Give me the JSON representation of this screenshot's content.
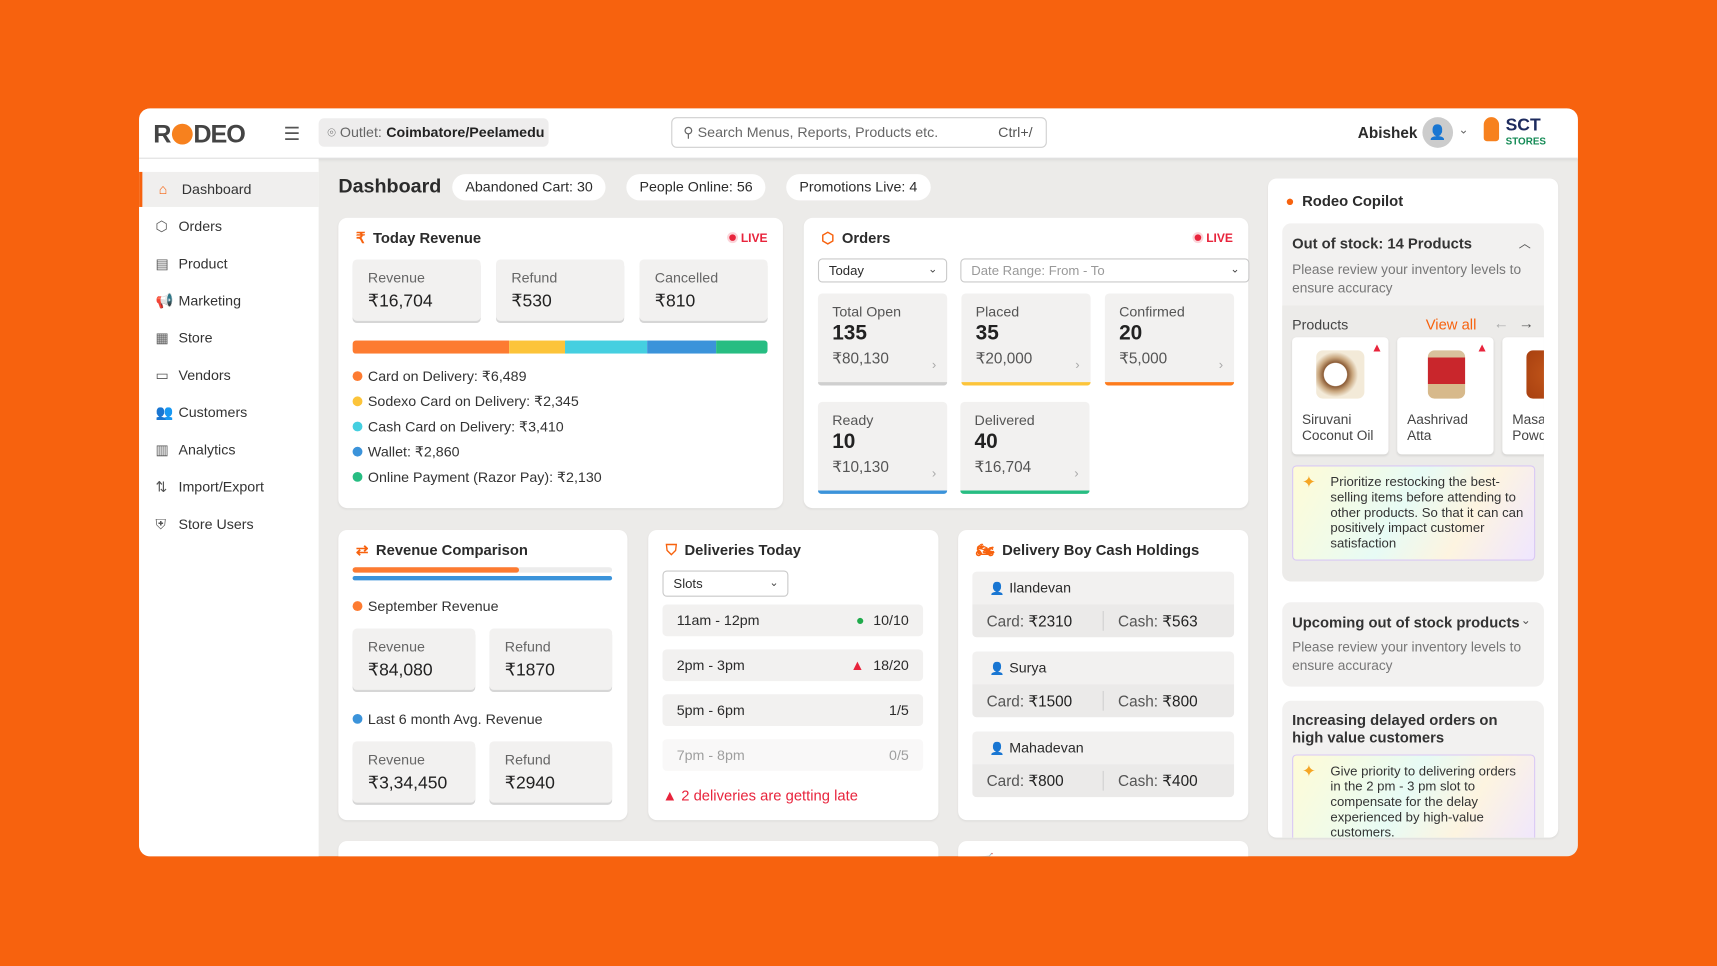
{
  "header": {
    "logo": "RODEO",
    "outlet_label": "Outlet:",
    "outlet_value": "Coimbatore/Peelamedu",
    "search_placeholder": "Search Menus, Reports, Products etc.",
    "search_shortcut": "Ctrl+/",
    "user_name": "Abishek",
    "brand_line1": "SCT",
    "brand_line2": "STORES"
  },
  "sidebar": {
    "items": [
      {
        "label": "Dashboard",
        "icon": "home-icon"
      },
      {
        "label": "Orders",
        "icon": "box-icon"
      },
      {
        "label": "Product",
        "icon": "clipboard-icon"
      },
      {
        "label": "Marketing",
        "icon": "megaphone-icon"
      },
      {
        "label": "Store",
        "icon": "store-icon"
      },
      {
        "label": "Vendors",
        "icon": "vendor-icon"
      },
      {
        "label": "Customers",
        "icon": "users-icon"
      },
      {
        "label": "Analytics",
        "icon": "chart-icon"
      },
      {
        "label": "Import/Export",
        "icon": "import-export-icon"
      },
      {
        "label": "Store Users",
        "icon": "shield-icon"
      }
    ]
  },
  "page": {
    "title": "Dashboard",
    "pills": [
      "Abandoned Cart: 30",
      "People Online: 56",
      "Promotions Live: 4"
    ]
  },
  "today_revenue": {
    "title": "Today Revenue",
    "live": "LIVE",
    "stats": [
      {
        "label": "Revenue",
        "value": "₹16,704"
      },
      {
        "label": "Refund",
        "value": "₹530"
      },
      {
        "label": "Cancelled",
        "value": "₹810"
      }
    ],
    "breakdown": [
      {
        "label": "Card on Delivery: ₹6,489",
        "amount": 6489,
        "color": "#fd7b31"
      },
      {
        "label": "Sodexo Card on Delivery: ₹2,345",
        "amount": 2345,
        "color": "#fcc43a"
      },
      {
        "label": "Cash Card on Delivery: ₹3,410",
        "amount": 3410,
        "color": "#45cfe0"
      },
      {
        "label": "Wallet: ₹2,860",
        "amount": 2860,
        "color": "#3b93da"
      },
      {
        "label": "Online Payment (Razor Pay): ₹2,130",
        "amount": 2130,
        "color": "#27bd82"
      }
    ]
  },
  "orders": {
    "title": "Orders",
    "live": "LIVE",
    "period": "Today",
    "date_range_placeholder": "Date Range: From - To",
    "stats": [
      {
        "label": "Total Open",
        "count": "135",
        "amount": "₹80,130",
        "color": "#cfcfcf"
      },
      {
        "label": "Placed",
        "count": "35",
        "amount": "₹20,000",
        "color": "#fcc43a"
      },
      {
        "label": "Confirmed",
        "count": "20",
        "amount": "₹5,000",
        "color": "#fd7b1d"
      },
      {
        "label": "Ready",
        "count": "10",
        "amount": "₹10,130",
        "color": "#3b93da"
      },
      {
        "label": "Delivered",
        "count": "40",
        "amount": "₹16,704",
        "color": "#27bd82"
      }
    ]
  },
  "revenue_comparison": {
    "title": "Revenue Comparison",
    "september_fraction": 0.64,
    "sept_label": "September Revenue",
    "sept_revenue_label": "Revenue",
    "sept_revenue": "₹84,080",
    "sept_refund_label": "Refund",
    "sept_refund": "₹1870",
    "avg_label": "Last 6 month Avg. Revenue",
    "avg_revenue_label": "Revenue",
    "avg_revenue": "₹3,34,450",
    "avg_refund_label": "Refund",
    "avg_refund": "₹2940"
  },
  "deliveries": {
    "title": "Deliveries Today",
    "filter": "Slots",
    "slots": [
      {
        "time": "11am - 12pm",
        "count": "10/10",
        "status": "ok"
      },
      {
        "time": "2pm - 3pm",
        "count": "18/20",
        "status": "warn"
      },
      {
        "time": "5pm - 6pm",
        "count": "1/5",
        "status": ""
      },
      {
        "time": "7pm - 8pm",
        "count": "0/5",
        "status": ""
      }
    ],
    "alert": "2 deliveries are getting late"
  },
  "delivery_boys": {
    "title": "Delivery Boy Cash Holdings",
    "card_label": "Card:",
    "cash_label": "Cash:",
    "items": [
      {
        "name": "Ilandevan",
        "card": "₹2310",
        "cash": "₹563"
      },
      {
        "name": "Surya",
        "card": "₹1500",
        "cash": "₹800"
      },
      {
        "name": "Mahadevan",
        "card": "₹800",
        "cash": "₹400"
      }
    ]
  },
  "copilot": {
    "title": "Rodeo Copilot",
    "out_of_stock": {
      "title": "Out of stock: 14 Products",
      "desc": "Please review your inventory levels to ensure accuracy",
      "products_label": "Products",
      "view_all": "View all",
      "products": [
        "Siruvani Coconut Oil",
        "Aashrivad Atta",
        "Masala Powder"
      ],
      "tip": "Prioritize restocking the best-selling items before attending to other products. So that it can can positively impact customer satisfaction"
    },
    "upcoming": {
      "title": "Upcoming out of stock products",
      "desc": "Please review your inventory levels to ensure accuracy"
    },
    "delayed": {
      "title": "Increasing delayed orders on high value customers",
      "tip": "Give priority to delivering orders in the 2 pm - 3 pm slot to compensate for the delay experienced by high-value customers."
    }
  },
  "colors": {
    "accent": "#f7620e",
    "background": "#ecebe9",
    "danger": "#e8243c",
    "success": "#27bd82"
  }
}
